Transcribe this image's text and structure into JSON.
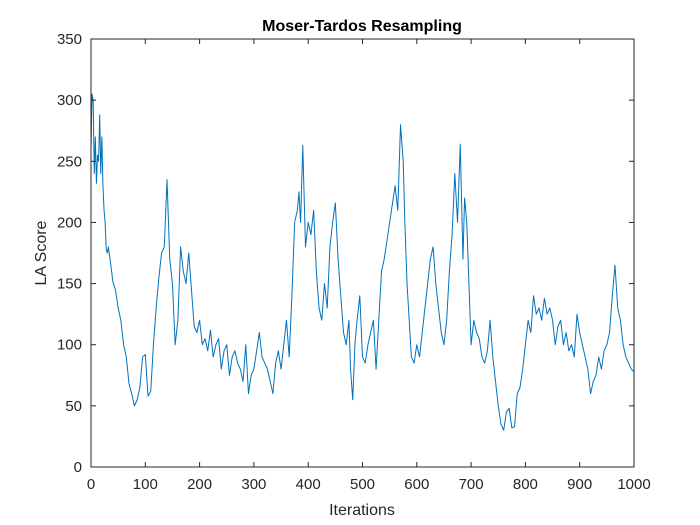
{
  "chart_data": {
    "type": "line",
    "title": "Moser-Tardos Resampling",
    "xlabel": "Iterations",
    "ylabel": "LA Score",
    "xlim": [
      0,
      1000
    ],
    "ylim": [
      0,
      350
    ],
    "xticks": [
      0,
      100,
      200,
      300,
      400,
      500,
      600,
      700,
      800,
      900,
      1000
    ],
    "yticks": [
      0,
      50,
      100,
      150,
      200,
      250,
      300,
      350
    ],
    "grid": false,
    "legend": "none",
    "line_color": "#0072BD",
    "series": [
      {
        "x": [
          0,
          2,
          4,
          6,
          8,
          10,
          12,
          14,
          16,
          18,
          20,
          22,
          24,
          26,
          28,
          30,
          32,
          35,
          38,
          40,
          45,
          50,
          55,
          60,
          65,
          70,
          75,
          80,
          85,
          90,
          95,
          100,
          105,
          110,
          115,
          120,
          125,
          130,
          135,
          140,
          145,
          150,
          155,
          160,
          165,
          170,
          175,
          180,
          185,
          190,
          195,
          200,
          205,
          210,
          215,
          220,
          225,
          230,
          235,
          240,
          245,
          250,
          255,
          260,
          265,
          270,
          275,
          280,
          285,
          290,
          295,
          300,
          305,
          310,
          315,
          320,
          325,
          330,
          335,
          340,
          345,
          350,
          355,
          360,
          365,
          370,
          375,
          380,
          383,
          386,
          390,
          395,
          400,
          405,
          410,
          415,
          420,
          425,
          430,
          435,
          440,
          445,
          450,
          455,
          460,
          465,
          470,
          475,
          478,
          482,
          486,
          490,
          495,
          500,
          505,
          510,
          515,
          520,
          525,
          530,
          535,
          540,
          545,
          550,
          555,
          560,
          565,
          570,
          575,
          578,
          582,
          586,
          590,
          595,
          600,
          605,
          610,
          615,
          620,
          625,
          630,
          635,
          640,
          645,
          650,
          655,
          660,
          665,
          670,
          675,
          680,
          685,
          688,
          692,
          696,
          700,
          705,
          710,
          715,
          720,
          725,
          730,
          735,
          740,
          745,
          750,
          755,
          760,
          765,
          770,
          775,
          780,
          785,
          790,
          795,
          800,
          805,
          810,
          815,
          820,
          825,
          830,
          835,
          840,
          845,
          850,
          855,
          860,
          865,
          870,
          875,
          880,
          885,
          890,
          895,
          900,
          905,
          910,
          915,
          920,
          925,
          930,
          935,
          940,
          945,
          950,
          955,
          960,
          965,
          970,
          975,
          980,
          985,
          990,
          995,
          1000
        ],
        "y": [
          260,
          305,
          300,
          240,
          270,
          232,
          255,
          250,
          288,
          240,
          270,
          230,
          210,
          200,
          178,
          175,
          180,
          170,
          160,
          152,
          145,
          130,
          120,
          100,
          90,
          68,
          60,
          50,
          55,
          65,
          90,
          92,
          58,
          62,
          100,
          130,
          155,
          175,
          180,
          235,
          170,
          150,
          100,
          120,
          180,
          160,
          150,
          175,
          145,
          115,
          110,
          120,
          100,
          105,
          95,
          112,
          90,
          100,
          105,
          80,
          95,
          100,
          75,
          90,
          95,
          85,
          80,
          70,
          100,
          60,
          75,
          80,
          95,
          110,
          90,
          85,
          80,
          70,
          60,
          85,
          95,
          80,
          100,
          120,
          90,
          140,
          200,
          210,
          225,
          200,
          263,
          180,
          200,
          190,
          210,
          160,
          130,
          120,
          150,
          130,
          180,
          200,
          216,
          170,
          140,
          110,
          100,
          120,
          80,
          55,
          100,
          120,
          140,
          90,
          85,
          100,
          110,
          120,
          80,
          120,
          160,
          170,
          185,
          200,
          215,
          230,
          210,
          280,
          250,
          200,
          150,
          120,
          90,
          85,
          100,
          90,
          110,
          130,
          150,
          170,
          180,
          150,
          130,
          110,
          100,
          120,
          160,
          190,
          240,
          200,
          264,
          170,
          220,
          200,
          150,
          100,
          120,
          110,
          105,
          90,
          85,
          95,
          120,
          90,
          70,
          50,
          35,
          30,
          45,
          48,
          32,
          33,
          60,
          65,
          80,
          100,
          120,
          110,
          140,
          125,
          130,
          120,
          138,
          125,
          130,
          120,
          100,
          115,
          120,
          100,
          110,
          95,
          100,
          90,
          125,
          110,
          100,
          90,
          80,
          60,
          70,
          75,
          90,
          80,
          95,
          100,
          110,
          140,
          165,
          130,
          120,
          100,
          90,
          85,
          80,
          78
        ]
      }
    ]
  }
}
